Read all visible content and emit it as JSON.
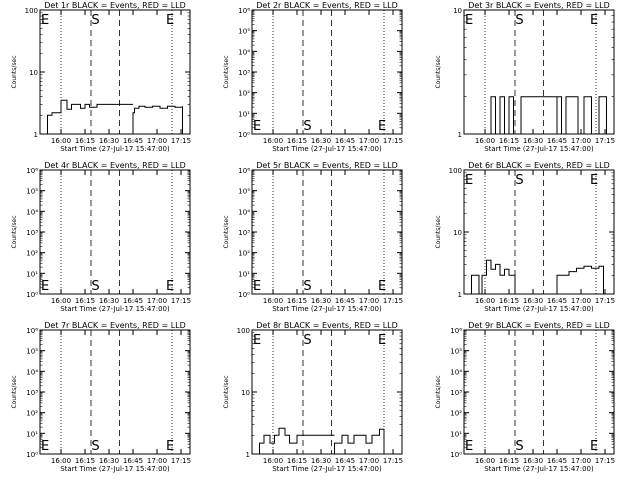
{
  "x_tick_labels": [
    "16:00",
    "16:15",
    "16:30",
    "16:45",
    "17:00",
    "17:15"
  ],
  "xlabel": "Start Time (27-Jul-17 15:47:00)",
  "ylabel": "Counts/sec",
  "marker_labels": {
    "e": "E",
    "s": "S"
  },
  "chart_data": [
    {
      "type": "line",
      "title": "Det 1r BLACK = Events, RED = LLD",
      "yscale": "log",
      "ylim": [
        1,
        100
      ],
      "ytick_labels": [
        "1",
        "10",
        "100"
      ],
      "markers": {
        "e_left": true,
        "s": true,
        "e_right": true
      },
      "marker_row": "top",
      "series": [
        {
          "x": [
            0.05,
            0.08,
            0.14,
            0.18,
            0.21,
            0.27,
            0.3,
            0.33,
            0.38,
            0.62,
            0.63,
            0.66,
            0.7,
            0.75,
            0.8,
            0.85,
            0.9,
            0.95
          ],
          "y": [
            2.0,
            2.2,
            3.5,
            2.5,
            3.0,
            2.6,
            3.0,
            2.7,
            3.0,
            2.2,
            2.6,
            2.8,
            2.7,
            2.8,
            2.6,
            2.8,
            2.7,
            2.8
          ]
        }
      ]
    },
    {
      "type": "line",
      "title": "Det 2r BLACK = Events, RED = LLD",
      "yscale": "log",
      "ylim": [
        1,
        1000000
      ],
      "ytick_labels": [
        "10⁰",
        "10¹",
        "10²",
        "10³",
        "10⁴",
        "10⁵",
        "10⁶"
      ],
      "markers": {
        "e_left": true,
        "s": true,
        "e_right": true
      },
      "marker_row": "bottom",
      "series": []
    },
    {
      "type": "line",
      "title": "Det 3r BLACK = Events, RED = LLD",
      "yscale": "log",
      "ylim": [
        1,
        10
      ],
      "ytick_labels": [
        "1",
        "10"
      ],
      "markers": {
        "e_left": true,
        "s": true,
        "e_right": true
      },
      "marker_row": "top",
      "series": [
        {
          "x": [
            0.18,
            0.21,
            0.24,
            0.27,
            0.3,
            0.33,
            0.38,
            0.62,
            0.65,
            0.68,
            0.72,
            0.76,
            0.8,
            0.85,
            0.9,
            0.95
          ],
          "y": [
            2,
            1,
            2,
            1,
            2,
            1,
            2,
            2,
            1,
            2,
            2,
            1,
            2,
            1,
            2,
            2
          ]
        }
      ]
    },
    {
      "type": "line",
      "title": "Det 4r BLACK = Events, RED = LLD",
      "yscale": "log",
      "ylim": [
        1,
        1000000
      ],
      "ytick_labels": [
        "10⁰",
        "10¹",
        "10²",
        "10³",
        "10⁴",
        "10⁵",
        "10⁶"
      ],
      "markers": {
        "e_left": true,
        "s": true,
        "e_right": true
      },
      "marker_row": "bottom",
      "series": []
    },
    {
      "type": "line",
      "title": "Det 5r BLACK = Events, RED = LLD",
      "yscale": "log",
      "ylim": [
        1,
        1000000
      ],
      "ytick_labels": [
        "10⁰",
        "10¹",
        "10²",
        "10³",
        "10⁴",
        "10⁵",
        "10⁶"
      ],
      "markers": {
        "e_left": true,
        "s": true,
        "e_right": true
      },
      "marker_row": "bottom",
      "series": []
    },
    {
      "type": "line",
      "title": "Det 6r BLACK = Events, RED = LLD",
      "yscale": "log",
      "ylim": [
        1,
        100
      ],
      "ytick_labels": [
        "1",
        "10",
        "100"
      ],
      "markers": {
        "e_left": true,
        "s": true,
        "e_right": true
      },
      "marker_row": "top",
      "series": [
        {
          "x": [
            0.05,
            0.1,
            0.12,
            0.15,
            0.18,
            0.21,
            0.24,
            0.27,
            0.3,
            0.34,
            0.6,
            0.62,
            0.66,
            0.7,
            0.75,
            0.8,
            0.85,
            0.9,
            0.93
          ],
          "y": [
            2,
            1,
            2,
            3.5,
            2.5,
            3,
            2,
            2.5,
            2,
            1,
            1,
            2,
            2,
            2.3,
            2.6,
            2.8,
            2.6,
            2.8,
            2.5
          ]
        }
      ]
    },
    {
      "type": "line",
      "title": "Det 7r BLACK = Events, RED = LLD",
      "yscale": "log",
      "ylim": [
        1,
        1000000
      ],
      "ytick_labels": [
        "10⁰",
        "10¹",
        "10²",
        "10³",
        "10⁴",
        "10⁵",
        "10⁶"
      ],
      "markers": {
        "e_left": true,
        "s": true,
        "e_right": true
      },
      "marker_row": "bottom",
      "series": []
    },
    {
      "type": "line",
      "title": "Det 8r BLACK = Events, RED = LLD",
      "yscale": "log",
      "ylim": [
        1,
        100
      ],
      "ytick_labels": [
        "1",
        "10",
        "100"
      ],
      "markers": {
        "e_left": true,
        "s": true,
        "e_right": true
      },
      "marker_row": "top",
      "series": [
        {
          "x": [
            0.05,
            0.08,
            0.12,
            0.15,
            0.18,
            0.22,
            0.25,
            0.3,
            0.34,
            0.55,
            0.6,
            0.64,
            0.68,
            0.72,
            0.76,
            0.8,
            0.85,
            0.88
          ],
          "y": [
            1.5,
            2,
            1.5,
            2,
            2.6,
            2,
            1.5,
            2,
            2,
            1.5,
            2,
            1.5,
            2,
            2,
            1.5,
            2,
            2.5,
            2
          ]
        }
      ]
    },
    {
      "type": "line",
      "title": "Det 9r BLACK = Events, RED = LLD",
      "yscale": "log",
      "ylim": [
        1,
        1000000
      ],
      "ytick_labels": [
        "10⁰",
        "10¹",
        "10²",
        "10³",
        "10⁴",
        "10⁵",
        "10⁶"
      ],
      "markers": {
        "e_left": true,
        "s": true,
        "e_right": true
      },
      "marker_row": "bottom",
      "series": []
    }
  ]
}
